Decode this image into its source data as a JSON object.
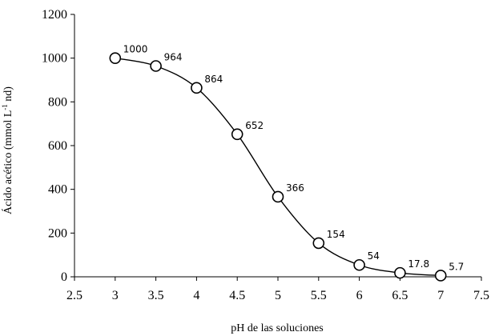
{
  "chart_data": {
    "type": "line",
    "title": "",
    "xlabel": "pH de las soluciones",
    "ylabel_parts": [
      "Ácido acético (mmol L",
      "-1",
      " nd)"
    ],
    "xlim": [
      2.5,
      7.5
    ],
    "ylim": [
      0,
      1200
    ],
    "xticks": [
      2.5,
      3,
      3.5,
      4,
      4.5,
      5,
      5.5,
      6,
      6.5,
      7,
      7.5
    ],
    "yticks": [
      0,
      200,
      400,
      600,
      800,
      1000,
      1200
    ],
    "grid": false,
    "series": [
      {
        "x": [
          3,
          3.5,
          4,
          4.5,
          5,
          5.5,
          6,
          6.5,
          7
        ],
        "y": [
          1000,
          964,
          864,
          652,
          366,
          154,
          54,
          17.8,
          5.7
        ],
        "labels": [
          "1000",
          "964",
          "864",
          "652",
          "366",
          "154",
          "54",
          "17.8",
          "5.7"
        ],
        "marker": "open-circle",
        "line": "smooth",
        "color": "#000000"
      }
    ]
  }
}
